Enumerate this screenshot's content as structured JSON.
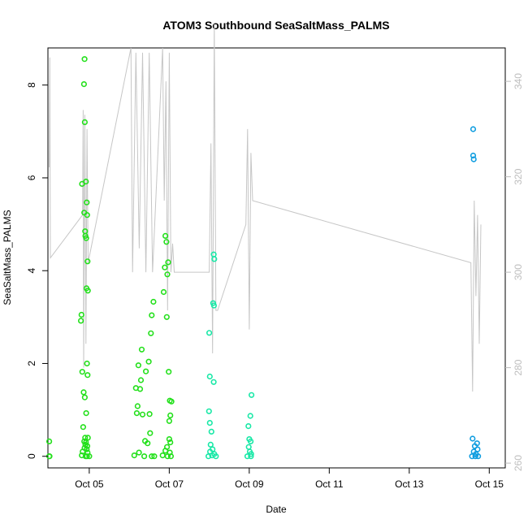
{
  "chart_data": {
    "type": "scatter",
    "title": "ATOM3 Southbound SeaSaltMass_PALMS",
    "xlabel": "Date",
    "ylabel": "SeaSaltMass_PALMS",
    "x_ticks": [
      "Oct 05",
      "Oct 07",
      "Oct 09",
      "Oct 11",
      "Oct 13",
      "Oct 15"
    ],
    "y_ticks": [
      "0",
      "2",
      "4",
      "6",
      "8"
    ],
    "y2_ticks": [
      "260",
      "280",
      "300",
      "320",
      "340"
    ],
    "xlim": [
      "2017-10-03T23:12",
      "2017-10-15T09:36"
    ],
    "ylim": [
      -0.25,
      8.8
    ],
    "y2lim": [
      259,
      347
    ],
    "grid": false,
    "colors": {
      "green": "#22e01a",
      "mint": "#17e8a6",
      "blue": "#0f9de0",
      "secondary_line": "#c6c6c6",
      "right_axis": "#bdbdbd"
    },
    "series": [
      {
        "color": "#22e01a",
        "points": [
          [
            "2017-10-04T00:00",
            0.0
          ],
          [
            "2017-10-04T00:00",
            0.32
          ],
          [
            "2017-10-04T00:10",
            0.0
          ],
          [
            "2017-10-04T21:10",
            8.56
          ],
          [
            "2017-10-04T20:50",
            8.02
          ],
          [
            "2017-10-04T21:20",
            7.2
          ],
          [
            "2017-10-04T19:40",
            5.87
          ],
          [
            "2017-10-04T22:00",
            5.92
          ],
          [
            "2017-10-04T22:30",
            5.47
          ],
          [
            "2017-10-04T21:00",
            5.25
          ],
          [
            "2017-10-04T22:45",
            5.2
          ],
          [
            "2017-10-04T21:30",
            4.85
          ],
          [
            "2017-10-04T21:40",
            4.75
          ],
          [
            "2017-10-04T22:10",
            4.7
          ],
          [
            "2017-10-04T23:00",
            4.2
          ],
          [
            "2017-10-04T22:20",
            3.62
          ],
          [
            "2017-10-04T23:10",
            3.57
          ],
          [
            "2017-10-04T19:20",
            3.05
          ],
          [
            "2017-10-04T19:00",
            2.92
          ],
          [
            "2017-10-04T22:40",
            2.0
          ],
          [
            "2017-10-04T19:50",
            1.82
          ],
          [
            "2017-10-04T23:00",
            1.75
          ],
          [
            "2017-10-04T20:40",
            1.38
          ],
          [
            "2017-10-04T21:20",
            1.27
          ],
          [
            "2017-10-04T22:10",
            0.93
          ],
          [
            "2017-10-04T20:20",
            0.63
          ],
          [
            "2017-10-04T21:30",
            0.4
          ],
          [
            "2017-10-04T23:10",
            0.4
          ],
          [
            "2017-10-04T21:00",
            0.32
          ],
          [
            "2017-10-04T22:00",
            0.3
          ],
          [
            "2017-10-04T21:40",
            0.25
          ],
          [
            "2017-10-04T22:50",
            0.22
          ],
          [
            "2017-10-04T21:10",
            0.18
          ],
          [
            "2017-10-04T22:30",
            0.15
          ],
          [
            "2017-10-04T20:00",
            0.1
          ],
          [
            "2017-10-04T23:00",
            0.08
          ],
          [
            "2017-10-04T19:30",
            0.02
          ],
          [
            "2017-10-04T21:50",
            0.0
          ],
          [
            "2017-10-04T22:40",
            0.0
          ],
          [
            "2017-10-05T00:00",
            0.0
          ],
          [
            "2017-10-06T14:30",
            3.33
          ],
          [
            "2017-10-06T13:30",
            3.04
          ],
          [
            "2017-10-06T13:00",
            2.65
          ],
          [
            "2017-10-06T07:30",
            2.3
          ],
          [
            "2017-10-06T11:40",
            2.04
          ],
          [
            "2017-10-06T05:30",
            1.96
          ],
          [
            "2017-10-06T10:00",
            1.83
          ],
          [
            "2017-10-06T07:00",
            1.64
          ],
          [
            "2017-10-06T04:00",
            1.47
          ],
          [
            "2017-10-06T06:30",
            1.45
          ],
          [
            "2017-10-06T05:00",
            1.08
          ],
          [
            "2017-10-06T04:30",
            0.93
          ],
          [
            "2017-10-06T08:00",
            0.9
          ],
          [
            "2017-10-06T12:10",
            0.91
          ],
          [
            "2017-10-06T12:30",
            0.5
          ],
          [
            "2017-10-06T09:30",
            0.33
          ],
          [
            "2017-10-06T11:00",
            0.28
          ],
          [
            "2017-10-06T05:50",
            0.08
          ],
          [
            "2017-10-06T03:00",
            0.02
          ],
          [
            "2017-10-06T09:00",
            0.0
          ],
          [
            "2017-10-06T13:30",
            0.0
          ],
          [
            "2017-10-06T15:00",
            0.0
          ],
          [
            "2017-10-06T21:40",
            4.75
          ],
          [
            "2017-10-06T22:20",
            4.62
          ],
          [
            "2017-10-06T23:20",
            4.18
          ],
          [
            "2017-10-06T21:20",
            4.07
          ],
          [
            "2017-10-06T22:50",
            3.92
          ],
          [
            "2017-10-06T20:40",
            3.54
          ],
          [
            "2017-10-06T22:30",
            3.0
          ],
          [
            "2017-10-06T23:40",
            1.82
          ],
          [
            "2017-10-07T00:20",
            1.2
          ],
          [
            "2017-10-07T01:20",
            1.18
          ],
          [
            "2017-10-07T00:40",
            0.88
          ],
          [
            "2017-10-07T00:00",
            0.76
          ],
          [
            "2017-10-07T00:00",
            0.37
          ],
          [
            "2017-10-07T00:40",
            0.3
          ],
          [
            "2017-10-06T22:40",
            0.2
          ],
          [
            "2017-10-06T21:40",
            0.12
          ],
          [
            "2017-10-07T00:20",
            0.08
          ],
          [
            "2017-10-06T20:00",
            0.02
          ],
          [
            "2017-10-06T23:00",
            0.0
          ],
          [
            "2017-10-07T01:00",
            0.0
          ]
        ]
      },
      {
        "color": "#17e8a6",
        "points": [
          [
            "2017-10-08T02:40",
            4.35
          ],
          [
            "2017-10-08T03:00",
            4.25
          ],
          [
            "2017-10-08T02:20",
            3.3
          ],
          [
            "2017-10-08T02:50",
            3.25
          ],
          [
            "2017-10-08T00:00",
            2.66
          ],
          [
            "2017-10-08T00:20",
            1.72
          ],
          [
            "2017-10-08T02:40",
            1.6
          ],
          [
            "2017-10-07T23:50",
            0.97
          ],
          [
            "2017-10-08T00:20",
            0.72
          ],
          [
            "2017-10-08T01:20",
            0.53
          ],
          [
            "2017-10-08T00:50",
            0.25
          ],
          [
            "2017-10-08T02:00",
            0.15
          ],
          [
            "2017-10-08T00:30",
            0.1
          ],
          [
            "2017-10-08T03:00",
            0.05
          ],
          [
            "2017-10-08T01:40",
            0.02
          ],
          [
            "2017-10-08T04:00",
            0.0
          ],
          [
            "2017-10-07T23:30",
            0.0
          ],
          [
            "2017-10-09T01:20",
            1.32
          ],
          [
            "2017-10-09T00:40",
            0.87
          ],
          [
            "2017-10-08T23:30",
            0.65
          ],
          [
            "2017-10-09T00:00",
            0.37
          ],
          [
            "2017-10-09T00:50",
            0.32
          ],
          [
            "2017-10-08T23:40",
            0.2
          ],
          [
            "2017-10-09T00:20",
            0.1
          ],
          [
            "2017-10-09T01:10",
            0.05
          ],
          [
            "2017-10-08T22:50",
            0.0
          ],
          [
            "2017-10-09T01:00",
            0.0
          ]
        ]
      },
      {
        "color": "#0f9de0",
        "points": [
          [
            "2017-10-14T14:20",
            7.05
          ],
          [
            "2017-10-14T14:20",
            6.48
          ],
          [
            "2017-10-14T14:40",
            6.4
          ],
          [
            "2017-10-14T14:00",
            0.38
          ],
          [
            "2017-10-14T16:40",
            0.28
          ],
          [
            "2017-10-14T15:20",
            0.22
          ],
          [
            "2017-10-14T17:00",
            0.15
          ],
          [
            "2017-10-14T14:40",
            0.1
          ],
          [
            "2017-10-14T16:00",
            0.05
          ],
          [
            "2017-10-14T13:40",
            0.0
          ],
          [
            "2017-10-14T15:40",
            0.0
          ],
          [
            "2017-10-14T17:20",
            0.0
          ]
        ]
      }
    ],
    "secondary_line": {
      "axis": "right",
      "color": "#c6c6c6",
      "points": [
        [
          "2017-10-04T00:00",
          322
        ],
        [
          "2017-10-04T00:20",
          345
        ],
        [
          "2017-10-04T00:40",
          303
        ],
        [
          "2017-10-04T20:00",
          312
        ],
        [
          "2017-10-04T20:20",
          334
        ],
        [
          "2017-10-04T20:40",
          280
        ],
        [
          "2017-10-04T21:20",
          333
        ],
        [
          "2017-10-04T22:00",
          285
        ],
        [
          "2017-10-04T22:40",
          330
        ],
        [
          "2017-10-04T23:20",
          302
        ],
        [
          "2017-10-06T01:00",
          347
        ],
        [
          "2017-10-06T02:00",
          300
        ],
        [
          "2017-10-06T04:00",
          346
        ],
        [
          "2017-10-06T06:00",
          305
        ],
        [
          "2017-10-06T08:00",
          346
        ],
        [
          "2017-10-06T10:00",
          300
        ],
        [
          "2017-10-06T12:00",
          346
        ],
        [
          "2017-10-06T14:00",
          300
        ],
        [
          "2017-10-06T20:00",
          347
        ],
        [
          "2017-10-06T21:00",
          315
        ],
        [
          "2017-10-06T22:00",
          340
        ],
        [
          "2017-10-06T23:00",
          292
        ],
        [
          "2017-10-07T00:00",
          346
        ],
        [
          "2017-10-07T01:00",
          300
        ],
        [
          "2017-10-07T02:00",
          306
        ],
        [
          "2017-10-07T03:00",
          300
        ],
        [
          "2017-10-08T00:00",
          300
        ],
        [
          "2017-10-08T01:00",
          327
        ],
        [
          "2017-10-08T02:00",
          283
        ],
        [
          "2017-10-08T03:00",
          352
        ],
        [
          "2017-10-08T04:00",
          292
        ],
        [
          "2017-10-08T05:00",
          292
        ],
        [
          "2017-10-08T22:00",
          310
        ],
        [
          "2017-10-08T23:00",
          330
        ],
        [
          "2017-10-09T00:00",
          288
        ],
        [
          "2017-10-09T01:00",
          325
        ],
        [
          "2017-10-09T02:00",
          315
        ],
        [
          "2017-10-14T13:00",
          302
        ],
        [
          "2017-10-14T14:00",
          275
        ],
        [
          "2017-10-14T15:00",
          315
        ],
        [
          "2017-10-14T16:00",
          295
        ],
        [
          "2017-10-14T17:00",
          312
        ],
        [
          "2017-10-14T18:00",
          285
        ],
        [
          "2017-10-14T19:00",
          310
        ]
      ]
    }
  }
}
